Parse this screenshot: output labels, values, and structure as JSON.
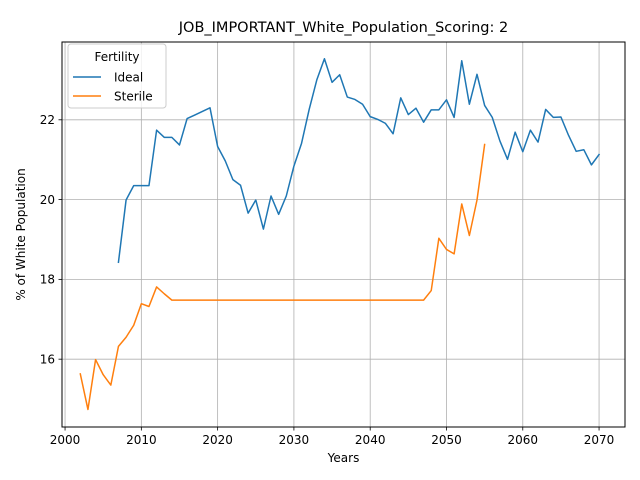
{
  "chart_data": {
    "type": "line",
    "title": "JOB_IMPORTANT_White_Population_Scoring: 2",
    "xlabel": "Years",
    "ylabel": "% of White Population",
    "xlim": [
      1999.6,
      2073.4
    ],
    "ylim": [
      14.3,
      23.95
    ],
    "xticks": [
      2000,
      2010,
      2020,
      2030,
      2040,
      2050,
      2060,
      2070
    ],
    "yticks": [
      16,
      18,
      20,
      22
    ],
    "grid": true,
    "legend": {
      "title": "Fertility",
      "placement": "top-left"
    },
    "series": [
      {
        "name": "Ideal",
        "color": "#1f77b4",
        "x": [
          2007,
          2008,
          2009,
          2010,
          2011,
          2012,
          2013,
          2014,
          2015,
          2016,
          2017,
          2018,
          2019,
          2020,
          2021,
          2022,
          2023,
          2024,
          2025,
          2026,
          2027,
          2028,
          2029,
          2030,
          2031,
          2032,
          2033,
          2034,
          2035,
          2036,
          2037,
          2038,
          2039,
          2040,
          2041,
          2042,
          2043,
          2044,
          2045,
          2046,
          2047,
          2048,
          2049,
          2050,
          2051,
          2052,
          2053,
          2054,
          2055,
          2056,
          2057,
          2058,
          2059,
          2060,
          2061,
          2062,
          2063,
          2064,
          2065,
          2066,
          2067,
          2068,
          2069,
          2070
        ],
        "y": [
          18.43,
          19.99,
          20.35,
          20.35,
          20.35,
          21.74,
          21.56,
          21.56,
          21.37,
          22.03,
          22.12,
          22.21,
          22.3,
          21.33,
          20.97,
          20.5,
          20.36,
          19.66,
          19.99,
          19.26,
          20.09,
          19.63,
          20.09,
          20.84,
          21.41,
          22.26,
          23.0,
          23.53,
          22.94,
          23.13,
          22.57,
          22.51,
          22.39,
          22.08,
          22.01,
          21.91,
          21.65,
          22.55,
          22.13,
          22.29,
          21.94,
          22.25,
          22.25,
          22.5,
          22.06,
          23.48,
          22.39,
          23.14,
          22.36,
          22.06,
          21.47,
          21.01,
          21.69,
          21.2,
          21.74,
          21.44,
          22.26,
          22.06,
          22.07,
          21.61,
          21.21,
          21.25,
          20.87,
          21.13
        ]
      },
      {
        "name": "Sterile",
        "color": "#ff7f0e",
        "x": [
          2002,
          2003,
          2004,
          2005,
          2006,
          2007,
          2008,
          2009,
          2010,
          2011,
          2012,
          2013,
          2014,
          2015,
          2016,
          2017,
          2018,
          2019,
          2020,
          2021,
          2022,
          2023,
          2024,
          2025,
          2026,
          2027,
          2028,
          2029,
          2030,
          2031,
          2032,
          2033,
          2034,
          2035,
          2036,
          2037,
          2038,
          2039,
          2040,
          2041,
          2042,
          2043,
          2044,
          2045,
          2046,
          2047,
          2048,
          2049,
          2050,
          2051,
          2052,
          2053,
          2054,
          2055
        ],
        "y": [
          15.63,
          14.74,
          15.99,
          15.61,
          15.35,
          16.32,
          16.55,
          16.85,
          17.39,
          17.32,
          17.81,
          17.64,
          17.48,
          17.48,
          17.48,
          17.48,
          17.48,
          17.48,
          17.48,
          17.48,
          17.48,
          17.48,
          17.48,
          17.48,
          17.48,
          17.48,
          17.48,
          17.48,
          17.48,
          17.48,
          17.48,
          17.48,
          17.48,
          17.48,
          17.48,
          17.48,
          17.48,
          17.48,
          17.48,
          17.48,
          17.48,
          17.48,
          17.48,
          17.48,
          17.48,
          17.48,
          17.72,
          19.03,
          18.75,
          18.64,
          19.89,
          19.1,
          19.99,
          21.38
        ]
      }
    ]
  }
}
